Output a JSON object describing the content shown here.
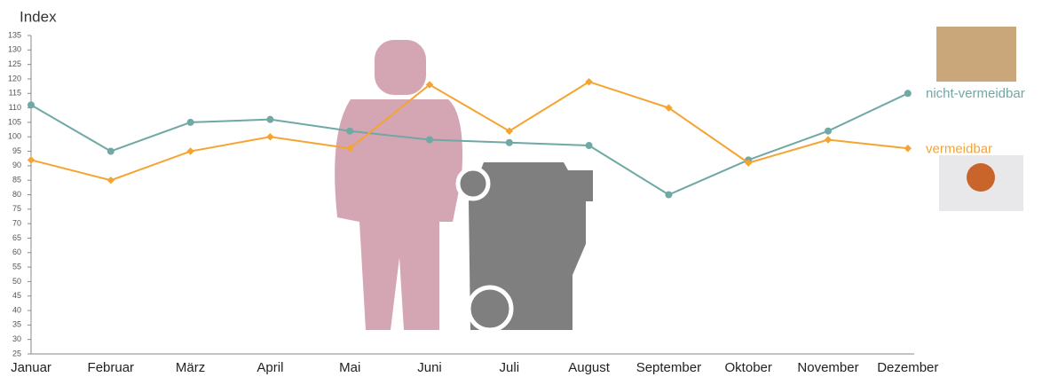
{
  "chart_data": {
    "type": "line",
    "y_label": "Index",
    "categories": [
      "Januar",
      "Februar",
      "März",
      "April",
      "Mai",
      "Juni",
      "Juli",
      "August",
      "September",
      "Oktober",
      "November",
      "Dezember"
    ],
    "series": [
      {
        "name": "nicht-vermeidbar",
        "color": "#6fa8a4",
        "values": [
          111,
          95,
          105,
          106,
          102,
          99,
          98,
          97,
          80,
          92,
          102,
          115
        ]
      },
      {
        "name": "vermeidbar",
        "color": "#f5a431",
        "values": [
          92,
          85,
          95,
          100,
          96,
          118,
          102,
          119,
          110,
          91,
          99,
          96
        ]
      }
    ],
    "ylim": [
      25,
      135
    ],
    "yticks": [
      25,
      30,
      35,
      40,
      45,
      50,
      55,
      60,
      65,
      70,
      75,
      80,
      85,
      90,
      95,
      100,
      105,
      110,
      115,
      120,
      125,
      130,
      135
    ],
    "grid": false
  }
}
